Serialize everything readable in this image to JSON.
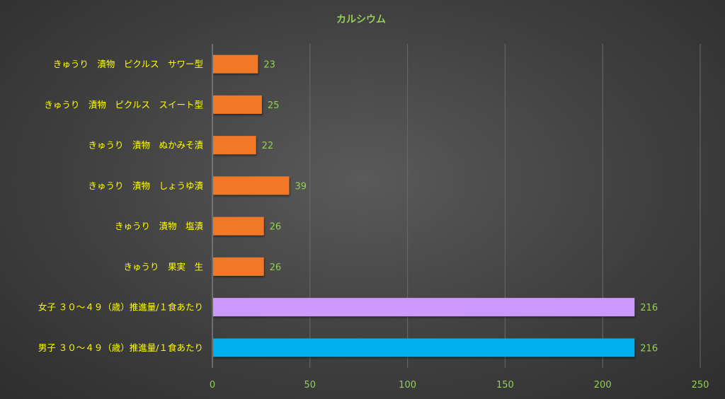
{
  "chart_data": {
    "type": "bar",
    "orientation": "horizontal",
    "title": "カルシウム",
    "categories": [
      "きゅうり　漬物　ピクルス　サワー型",
      "きゅうり　漬物　ピクルス　スイート型",
      "きゅうり　漬物　ぬかみそ漬",
      "きゅうり　漬物　しょうゆ漬",
      "きゅうり　漬物　塩漬",
      "きゅうり　果実　生",
      "女子 ３０～４９（歳）推進量/１食あたり",
      "男子 ３０～４９（歳）推進量/１食あたり"
    ],
    "values": [
      23,
      25,
      22,
      39,
      26,
      26,
      216,
      216
    ],
    "data_labels": [
      "23",
      "25",
      "22",
      "39",
      "26",
      "26",
      "216",
      "216"
    ],
    "bar_colors": [
      "#f07828",
      "#f07828",
      "#f07828",
      "#f07828",
      "#f07828",
      "#f07828",
      "#cc99ff",
      "#00b0f0"
    ],
    "xlim": [
      0,
      250
    ],
    "xticks": [
      0,
      50,
      100,
      150,
      200,
      250
    ],
    "xtick_labels": [
      "0",
      "50",
      "100",
      "150",
      "200",
      "250"
    ],
    "grid": true,
    "legend": "none",
    "colors": {
      "title": "#92d050",
      "category_text": "#ffff00",
      "tick_text": "#92d050",
      "value_text": "#92d050",
      "gridline": "#6a6a6a"
    }
  }
}
